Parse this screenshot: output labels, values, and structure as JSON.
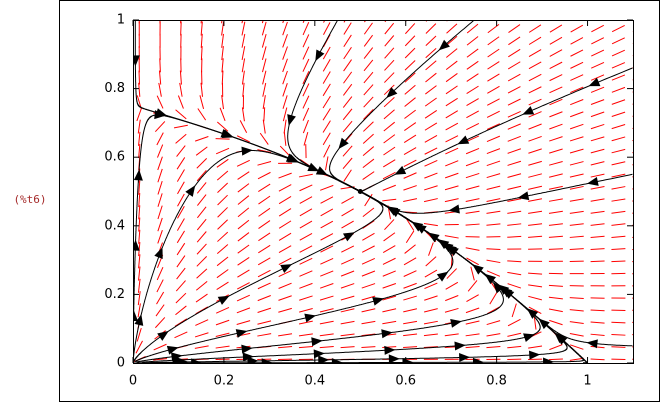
{
  "label": "(%t6)",
  "chart_data": {
    "type": "vector-field",
    "xlim": [
      0,
      1.1
    ],
    "ylim": [
      0,
      1
    ],
    "xticks": [
      0,
      0.2,
      0.4,
      0.6,
      0.8,
      1
    ],
    "yticks": [
      0,
      0.2,
      0.4,
      0.6,
      0.8,
      1
    ],
    "color": "#ff0000"
  }
}
